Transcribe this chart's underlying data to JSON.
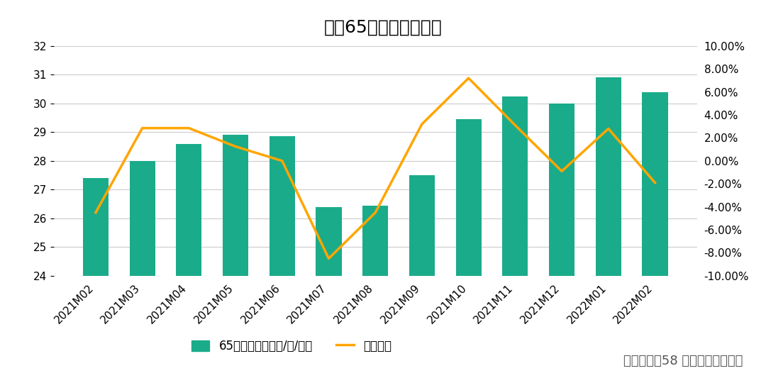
{
  "title": "全国65城租金变化情况",
  "categories": [
    "2021M02",
    "2021M03",
    "2021M04",
    "2021M05",
    "2021M06",
    "2021M07",
    "2021M08",
    "2021M09",
    "2021M10",
    "2021M11",
    "2021M12",
    "2022M01",
    "2022M02"
  ],
  "bar_values": [
    27.4,
    28.0,
    28.6,
    28.9,
    28.85,
    26.4,
    26.45,
    27.5,
    29.45,
    30.25,
    30.0,
    30.9,
    30.4
  ],
  "line_values": [
    -0.045,
    0.0285,
    0.0285,
    0.0125,
    0.0,
    -0.085,
    -0.045,
    0.032,
    0.072,
    0.031,
    -0.009,
    0.028,
    -0.019
  ],
  "bar_color": "#1aab8a",
  "line_color": "#FFA500",
  "ylim_left": [
    24,
    32
  ],
  "ylim_right": [
    -0.1,
    0.1
  ],
  "yticks_left": [
    24,
    25,
    26,
    27,
    28,
    29,
    30,
    31,
    32
  ],
  "yticks_right": [
    -0.1,
    -0.08,
    -0.06,
    -0.04,
    -0.02,
    0.0,
    0.02,
    0.04,
    0.06,
    0.08,
    0.1
  ],
  "legend_bar_label": "65城月均坪效（元/㎡/月）",
  "legend_line_label": "环比涨幅",
  "source_text": "数据来源：58 安居客房产研究院",
  "background_color": "#ffffff",
  "grid_color": "#cccccc",
  "title_fontsize": 18,
  "tick_fontsize": 11,
  "legend_fontsize": 12,
  "source_fontsize": 13
}
